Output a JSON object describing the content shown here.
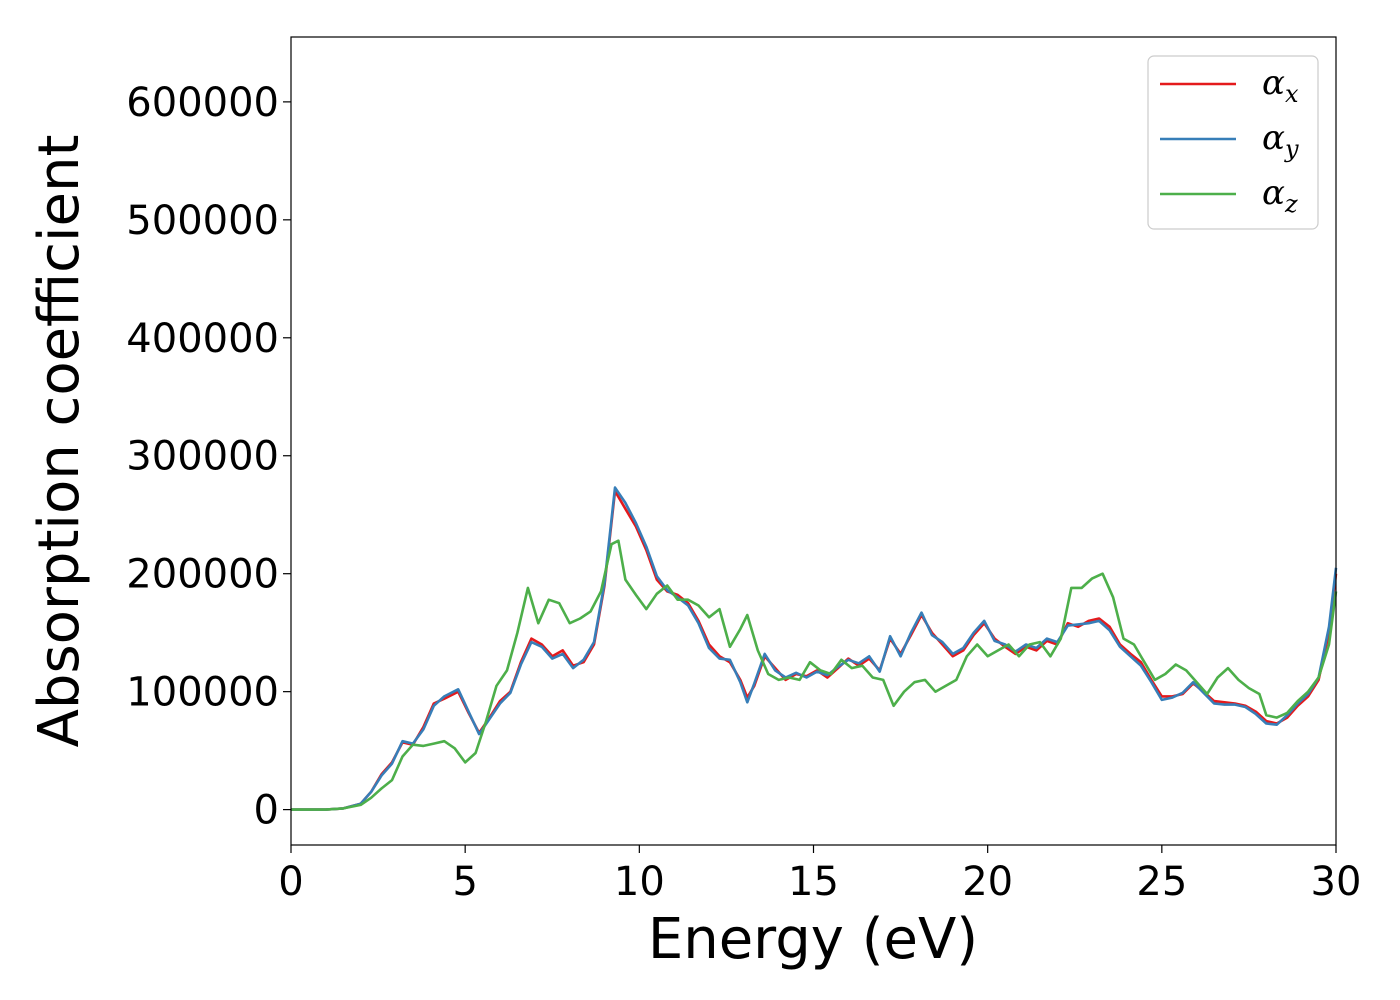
{
  "chart_data": {
    "type": "line",
    "title": "",
    "xlabel": "Energy (eV)",
    "ylabel": "Absorption coefficient",
    "xlim": [
      0,
      30
    ],
    "ylim": [
      -30000,
      655000
    ],
    "xticks": [
      0,
      5,
      10,
      15,
      20,
      25,
      30
    ],
    "yticks": [
      0,
      100000,
      200000,
      300000,
      400000,
      500000,
      600000
    ],
    "grid": false,
    "legend_position": "top-right",
    "series": [
      {
        "name": "α",
        "subscript": "x",
        "color": "#e41a1c",
        "points": [
          [
            0,
            0
          ],
          [
            1,
            0
          ],
          [
            1.5,
            1000
          ],
          [
            2,
            5000
          ],
          [
            2.3,
            15000
          ],
          [
            2.6,
            30000
          ],
          [
            2.9,
            40000
          ],
          [
            3.2,
            57000
          ],
          [
            3.5,
            55000
          ],
          [
            3.8,
            70000
          ],
          [
            4.1,
            90000
          ],
          [
            4.4,
            94000
          ],
          [
            4.8,
            100000
          ],
          [
            5.1,
            82000
          ],
          [
            5.4,
            65000
          ],
          [
            5.7,
            78000
          ],
          [
            6.0,
            92000
          ],
          [
            6.3,
            100000
          ],
          [
            6.6,
            125000
          ],
          [
            6.9,
            145000
          ],
          [
            7.2,
            140000
          ],
          [
            7.5,
            130000
          ],
          [
            7.8,
            135000
          ],
          [
            8.1,
            122000
          ],
          [
            8.4,
            125000
          ],
          [
            8.7,
            140000
          ],
          [
            9.0,
            190000
          ],
          [
            9.3,
            270000
          ],
          [
            9.6,
            255000
          ],
          [
            9.9,
            240000
          ],
          [
            10.2,
            220000
          ],
          [
            10.5,
            195000
          ],
          [
            10.8,
            185000
          ],
          [
            11.1,
            182000
          ],
          [
            11.4,
            175000
          ],
          [
            11.7,
            160000
          ],
          [
            12.0,
            140000
          ],
          [
            12.3,
            130000
          ],
          [
            12.6,
            125000
          ],
          [
            12.9,
            110000
          ],
          [
            13.1,
            95000
          ],
          [
            13.3,
            105000
          ],
          [
            13.6,
            130000
          ],
          [
            13.9,
            120000
          ],
          [
            14.2,
            110000
          ],
          [
            14.5,
            115000
          ],
          [
            14.8,
            113000
          ],
          [
            15.1,
            118000
          ],
          [
            15.4,
            112000
          ],
          [
            15.7,
            120000
          ],
          [
            16.0,
            128000
          ],
          [
            16.3,
            122000
          ],
          [
            16.6,
            128000
          ],
          [
            16.9,
            118000
          ],
          [
            17.2,
            145000
          ],
          [
            17.5,
            132000
          ],
          [
            17.8,
            148000
          ],
          [
            18.1,
            165000
          ],
          [
            18.4,
            150000
          ],
          [
            18.7,
            140000
          ],
          [
            19.0,
            130000
          ],
          [
            19.3,
            135000
          ],
          [
            19.6,
            148000
          ],
          [
            19.9,
            158000
          ],
          [
            20.2,
            145000
          ],
          [
            20.5,
            138000
          ],
          [
            20.8,
            132000
          ],
          [
            21.1,
            138000
          ],
          [
            21.4,
            135000
          ],
          [
            21.7,
            143000
          ],
          [
            22.0,
            140000
          ],
          [
            22.3,
            158000
          ],
          [
            22.6,
            155000
          ],
          [
            22.9,
            160000
          ],
          [
            23.2,
            162000
          ],
          [
            23.5,
            155000
          ],
          [
            23.8,
            140000
          ],
          [
            24.1,
            132000
          ],
          [
            24.4,
            125000
          ],
          [
            24.7,
            110000
          ],
          [
            25.0,
            96000
          ],
          [
            25.3,
            96000
          ],
          [
            25.6,
            98000
          ],
          [
            25.9,
            107000
          ],
          [
            26.2,
            100000
          ],
          [
            26.5,
            92000
          ],
          [
            26.8,
            91000
          ],
          [
            27.1,
            90000
          ],
          [
            27.4,
            88000
          ],
          [
            27.7,
            83000
          ],
          [
            28.0,
            75000
          ],
          [
            28.3,
            73000
          ],
          [
            28.6,
            78000
          ],
          [
            28.9,
            88000
          ],
          [
            29.2,
            96000
          ],
          [
            29.5,
            110000
          ],
          [
            29.8,
            150000
          ],
          [
            30.0,
            200000
          ]
        ]
      },
      {
        "name": "α",
        "subscript": "y",
        "color": "#377eb8",
        "points": [
          [
            0,
            0
          ],
          [
            1,
            0
          ],
          [
            1.5,
            1000
          ],
          [
            2,
            5000
          ],
          [
            2.3,
            15000
          ],
          [
            2.6,
            29000
          ],
          [
            2.9,
            39000
          ],
          [
            3.2,
            58000
          ],
          [
            3.5,
            56000
          ],
          [
            3.8,
            68000
          ],
          [
            4.1,
            88000
          ],
          [
            4.4,
            96000
          ],
          [
            4.8,
            102000
          ],
          [
            5.1,
            83000
          ],
          [
            5.4,
            64000
          ],
          [
            5.7,
            77000
          ],
          [
            6.0,
            90000
          ],
          [
            6.3,
            99000
          ],
          [
            6.6,
            123000
          ],
          [
            6.9,
            142000
          ],
          [
            7.2,
            138000
          ],
          [
            7.5,
            128000
          ],
          [
            7.8,
            132000
          ],
          [
            8.1,
            120000
          ],
          [
            8.4,
            127000
          ],
          [
            8.7,
            142000
          ],
          [
            9.0,
            192000
          ],
          [
            9.3,
            273000
          ],
          [
            9.6,
            260000
          ],
          [
            9.9,
            243000
          ],
          [
            10.2,
            223000
          ],
          [
            10.5,
            198000
          ],
          [
            10.8,
            186000
          ],
          [
            11.1,
            180000
          ],
          [
            11.4,
            173000
          ],
          [
            11.7,
            158000
          ],
          [
            12.0,
            137000
          ],
          [
            12.3,
            128000
          ],
          [
            12.6,
            127000
          ],
          [
            12.9,
            108000
          ],
          [
            13.1,
            91000
          ],
          [
            13.3,
            107000
          ],
          [
            13.6,
            132000
          ],
          [
            13.9,
            118000
          ],
          [
            14.2,
            112000
          ],
          [
            14.5,
            116000
          ],
          [
            14.8,
            112000
          ],
          [
            15.1,
            117000
          ],
          [
            15.4,
            114000
          ],
          [
            15.7,
            121000
          ],
          [
            16.0,
            127000
          ],
          [
            16.3,
            124000
          ],
          [
            16.6,
            130000
          ],
          [
            16.9,
            117000
          ],
          [
            17.2,
            147000
          ],
          [
            17.5,
            130000
          ],
          [
            17.8,
            150000
          ],
          [
            18.1,
            167000
          ],
          [
            18.4,
            148000
          ],
          [
            18.7,
            142000
          ],
          [
            19.0,
            132000
          ],
          [
            19.3,
            137000
          ],
          [
            19.6,
            150000
          ],
          [
            19.9,
            160000
          ],
          [
            20.2,
            143000
          ],
          [
            20.5,
            140000
          ],
          [
            20.8,
            134000
          ],
          [
            21.1,
            140000
          ],
          [
            21.4,
            137000
          ],
          [
            21.7,
            145000
          ],
          [
            22.0,
            142000
          ],
          [
            22.3,
            156000
          ],
          [
            22.6,
            157000
          ],
          [
            22.9,
            158000
          ],
          [
            23.2,
            160000
          ],
          [
            23.5,
            152000
          ],
          [
            23.8,
            138000
          ],
          [
            24.1,
            130000
          ],
          [
            24.4,
            122000
          ],
          [
            24.7,
            108000
          ],
          [
            25.0,
            93000
          ],
          [
            25.3,
            95000
          ],
          [
            25.6,
            99000
          ],
          [
            25.9,
            108000
          ],
          [
            26.2,
            99000
          ],
          [
            26.5,
            90000
          ],
          [
            26.8,
            89000
          ],
          [
            27.1,
            89000
          ],
          [
            27.4,
            87000
          ],
          [
            27.7,
            81000
          ],
          [
            28.0,
            73000
          ],
          [
            28.3,
            72000
          ],
          [
            28.6,
            80000
          ],
          [
            28.9,
            90000
          ],
          [
            29.2,
            98000
          ],
          [
            29.5,
            112000
          ],
          [
            29.8,
            155000
          ],
          [
            30.0,
            205000
          ]
        ]
      },
      {
        "name": "α",
        "subscript": "z",
        "color": "#4daf4a",
        "points": [
          [
            0,
            0
          ],
          [
            1,
            0
          ],
          [
            1.5,
            1000
          ],
          [
            2,
            4000
          ],
          [
            2.3,
            10000
          ],
          [
            2.6,
            18000
          ],
          [
            2.9,
            25000
          ],
          [
            3.2,
            45000
          ],
          [
            3.5,
            55000
          ],
          [
            3.8,
            54000
          ],
          [
            4.1,
            56000
          ],
          [
            4.4,
            58000
          ],
          [
            4.7,
            52000
          ],
          [
            5.0,
            40000
          ],
          [
            5.3,
            48000
          ],
          [
            5.6,
            75000
          ],
          [
            5.9,
            105000
          ],
          [
            6.2,
            118000
          ],
          [
            6.5,
            150000
          ],
          [
            6.8,
            188000
          ],
          [
            7.1,
            158000
          ],
          [
            7.4,
            178000
          ],
          [
            7.7,
            175000
          ],
          [
            8.0,
            158000
          ],
          [
            8.3,
            162000
          ],
          [
            8.6,
            168000
          ],
          [
            8.9,
            185000
          ],
          [
            9.2,
            225000
          ],
          [
            9.4,
            228000
          ],
          [
            9.6,
            195000
          ],
          [
            9.9,
            182000
          ],
          [
            10.2,
            170000
          ],
          [
            10.5,
            183000
          ],
          [
            10.8,
            190000
          ],
          [
            11.1,
            178000
          ],
          [
            11.4,
            178000
          ],
          [
            11.7,
            173000
          ],
          [
            12.0,
            163000
          ],
          [
            12.3,
            170000
          ],
          [
            12.6,
            138000
          ],
          [
            12.9,
            153000
          ],
          [
            13.1,
            165000
          ],
          [
            13.4,
            135000
          ],
          [
            13.7,
            115000
          ],
          [
            14.0,
            110000
          ],
          [
            14.3,
            112000
          ],
          [
            14.6,
            110000
          ],
          [
            14.9,
            125000
          ],
          [
            15.2,
            118000
          ],
          [
            15.5,
            115000
          ],
          [
            15.8,
            127000
          ],
          [
            16.1,
            120000
          ],
          [
            16.4,
            122000
          ],
          [
            16.7,
            112000
          ],
          [
            17.0,
            110000
          ],
          [
            17.3,
            88000
          ],
          [
            17.6,
            100000
          ],
          [
            17.9,
            108000
          ],
          [
            18.2,
            110000
          ],
          [
            18.5,
            100000
          ],
          [
            18.8,
            105000
          ],
          [
            19.1,
            110000
          ],
          [
            19.4,
            130000
          ],
          [
            19.7,
            140000
          ],
          [
            20.0,
            130000
          ],
          [
            20.3,
            135000
          ],
          [
            20.6,
            140000
          ],
          [
            20.9,
            130000
          ],
          [
            21.2,
            140000
          ],
          [
            21.5,
            142000
          ],
          [
            21.8,
            130000
          ],
          [
            22.1,
            145000
          ],
          [
            22.4,
            188000
          ],
          [
            22.7,
            188000
          ],
          [
            23.0,
            196000
          ],
          [
            23.3,
            200000
          ],
          [
            23.6,
            180000
          ],
          [
            23.9,
            145000
          ],
          [
            24.2,
            140000
          ],
          [
            24.5,
            125000
          ],
          [
            24.8,
            110000
          ],
          [
            25.1,
            115000
          ],
          [
            25.4,
            123000
          ],
          [
            25.7,
            118000
          ],
          [
            26.0,
            108000
          ],
          [
            26.3,
            98000
          ],
          [
            26.6,
            112000
          ],
          [
            26.9,
            120000
          ],
          [
            27.2,
            110000
          ],
          [
            27.5,
            103000
          ],
          [
            27.8,
            98000
          ],
          [
            28.0,
            80000
          ],
          [
            28.3,
            78000
          ],
          [
            28.6,
            82000
          ],
          [
            28.9,
            92000
          ],
          [
            29.2,
            100000
          ],
          [
            29.5,
            112000
          ],
          [
            29.8,
            140000
          ],
          [
            30.0,
            185000
          ]
        ]
      }
    ]
  }
}
